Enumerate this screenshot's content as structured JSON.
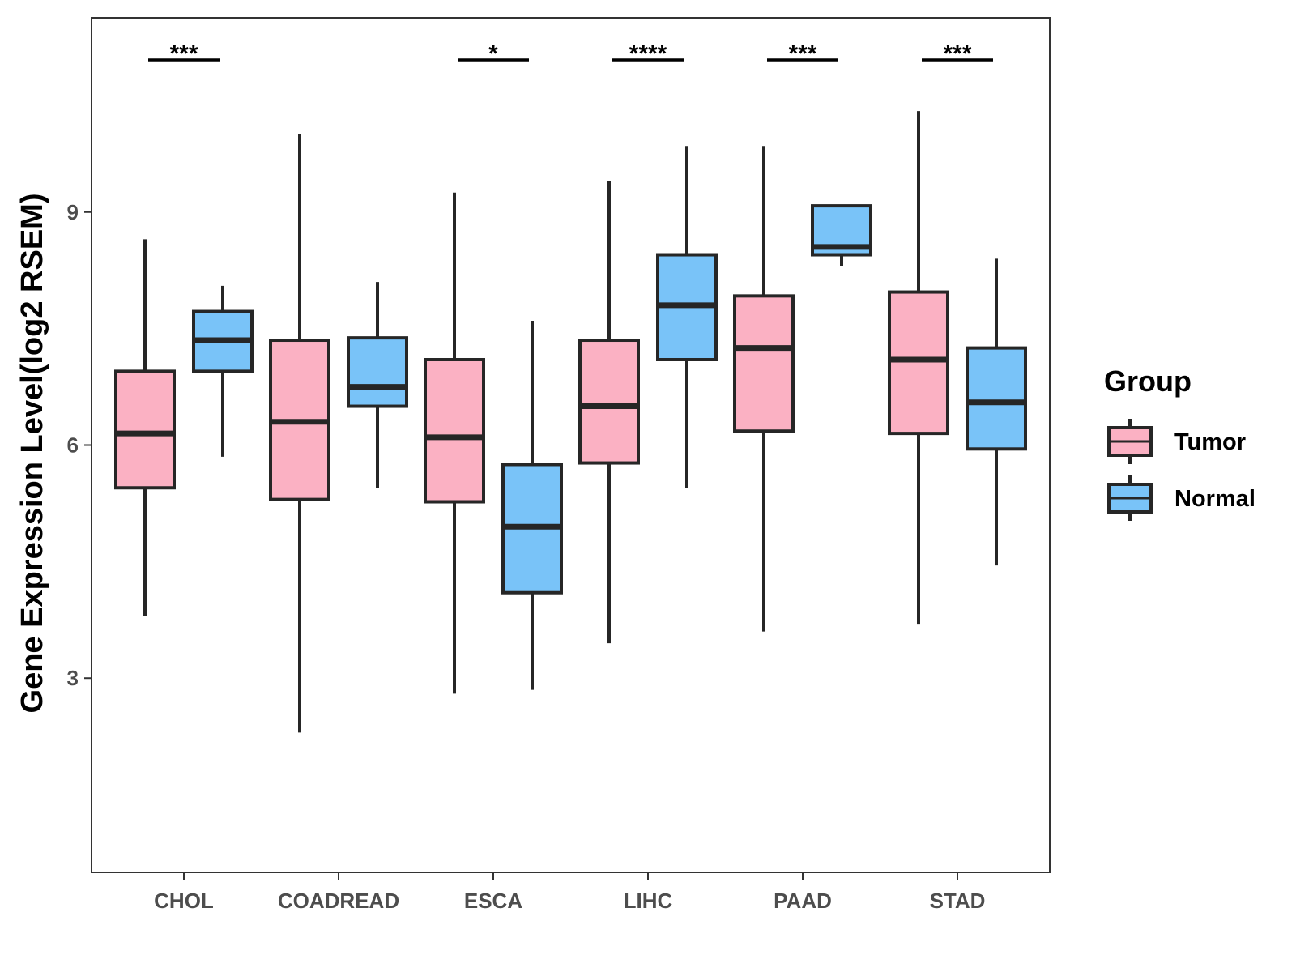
{
  "chart_data": {
    "type": "boxplot",
    "title": "",
    "xlabel": "",
    "ylabel": "Gene Expression Level(log2 RSEM)",
    "ylim": [
      0.5,
      11.5
    ],
    "yticks": [
      3,
      6,
      9
    ],
    "grid": false,
    "legend": {
      "title": "Group",
      "position": "right",
      "entries": [
        {
          "name": "Tumor",
          "color": "#fbb1c3"
        },
        {
          "name": "Normal",
          "color": "#79c3f8"
        }
      ]
    },
    "categories": [
      "CHOL",
      "COADREAD",
      "ESCA",
      "LIHC",
      "PAAD",
      "STAD"
    ],
    "series": [
      {
        "name": "Tumor",
        "color": "#fbb1c3",
        "boxes": [
          {
            "min": 3.8,
            "q1": 5.45,
            "median": 6.15,
            "q3": 6.95,
            "max": 8.65
          },
          {
            "min": 2.3,
            "q1": 5.3,
            "median": 6.3,
            "q3": 7.35,
            "max": 10.0
          },
          {
            "min": 2.8,
            "q1": 5.27,
            "median": 6.1,
            "q3": 7.1,
            "max": 9.25
          },
          {
            "min": 3.45,
            "q1": 5.77,
            "median": 6.5,
            "q3": 7.35,
            "max": 9.4
          },
          {
            "min": 3.6,
            "q1": 6.18,
            "median": 7.25,
            "q3": 7.92,
            "max": 9.85
          },
          {
            "min": 3.7,
            "q1": 6.15,
            "median": 7.1,
            "q3": 7.97,
            "max": 10.3
          }
        ]
      },
      {
        "name": "Normal",
        "color": "#79c3f8",
        "boxes": [
          {
            "min": 5.85,
            "q1": 6.95,
            "median": 7.35,
            "q3": 7.72,
            "max": 8.05
          },
          {
            "min": 5.45,
            "q1": 6.5,
            "median": 6.75,
            "q3": 7.38,
            "max": 8.1
          },
          {
            "min": 2.85,
            "q1": 4.1,
            "median": 4.95,
            "q3": 5.75,
            "max": 7.6
          },
          {
            "min": 5.45,
            "q1": 7.1,
            "median": 7.8,
            "q3": 8.45,
            "max": 9.85
          },
          {
            "min": 8.3,
            "q1": 8.45,
            "median": 8.55,
            "q3": 9.08,
            "max": 9.08
          },
          {
            "min": 4.45,
            "q1": 5.95,
            "median": 6.55,
            "q3": 7.25,
            "max": 8.4
          }
        ]
      }
    ],
    "significance": [
      {
        "category": "CHOL",
        "label": "***"
      },
      {
        "category": "ESCA",
        "label": "*"
      },
      {
        "category": "LIHC",
        "label": "****"
      },
      {
        "category": "PAAD",
        "label": "***"
      },
      {
        "category": "STAD",
        "label": "***"
      }
    ]
  }
}
